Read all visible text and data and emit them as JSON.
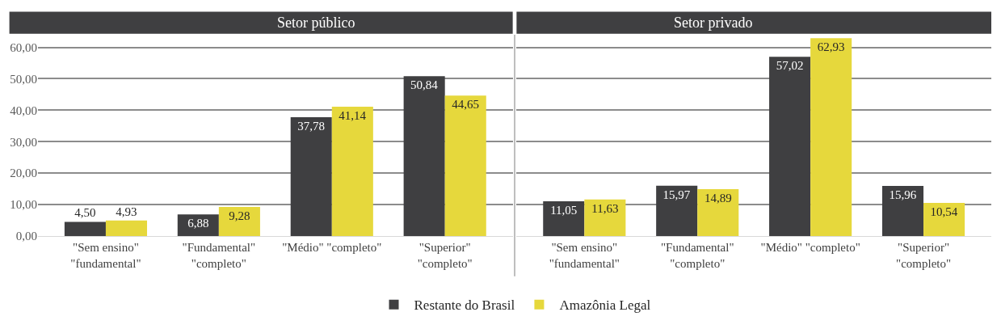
{
  "chart_data": [
    {
      "type": "bar",
      "title": "Setor público",
      "categories": [
        "\"Sem ensino\"\n\"fundamental\"",
        "\"Fundamental\"\n\"completo\"",
        "\"Médio\" \"completo\"",
        "\"Superior\"\n\"completo\""
      ],
      "ylim": [
        0,
        64
      ],
      "yticks": [
        {
          "value": 0,
          "label": "0,00"
        },
        {
          "value": 10,
          "label": "10,00"
        },
        {
          "value": 20,
          "label": "20,00"
        },
        {
          "value": 30,
          "label": "30,00"
        },
        {
          "value": 40,
          "label": "40,00"
        },
        {
          "value": 50,
          "label": "50,00"
        },
        {
          "value": 60,
          "label": "60,00"
        }
      ],
      "grid": "y",
      "legend": "bottom",
      "series": [
        {
          "name": "Restante do Brasil",
          "color": "#3f3f41",
          "values": [
            4.5,
            6.88,
            37.78,
            50.84
          ],
          "value_labels": [
            "4,50",
            "6,88",
            "37,78",
            "50,84"
          ]
        },
        {
          "name": "Amazônia Legal",
          "color": "#e6d83c",
          "values": [
            4.93,
            9.28,
            41.14,
            44.65
          ],
          "value_labels": [
            "4,93",
            "9,28",
            "41,14",
            "44,65"
          ]
        }
      ]
    },
    {
      "type": "bar",
      "title": "Setor privado",
      "categories": [
        "\"Sem ensino\"\n\"fundamental\"",
        "\"Fundamental\"\n\"completo\"",
        "\"Médio\" \"completo\"",
        "\"Superior\"\n\"completo\""
      ],
      "ylim": [
        0,
        64
      ],
      "yticks": [
        {
          "value": 0,
          "label": null
        },
        {
          "value": 10,
          "label": null
        },
        {
          "value": 20,
          "label": null
        },
        {
          "value": 30,
          "label": null
        },
        {
          "value": 40,
          "label": null
        },
        {
          "value": 50,
          "label": null
        },
        {
          "value": 60,
          "label": null
        }
      ],
      "grid": "y",
      "legend": "bottom",
      "tick_labels": "x",
      "series": [
        {
          "name": "Restante do Brasil",
          "color": "#3f3f41",
          "values": [
            11.05,
            15.97,
            57.02,
            15.96
          ],
          "value_labels": [
            "11,05",
            "15,97",
            "57,02",
            "15,96"
          ]
        },
        {
          "name": "Amazônia Legal",
          "color": "#e6d83c",
          "values": [
            11.63,
            14.89,
            62.93,
            10.54
          ],
          "value_labels": [
            "11,63",
            "14,89",
            "62,93",
            "10,54"
          ]
        }
      ]
    }
  ]
}
